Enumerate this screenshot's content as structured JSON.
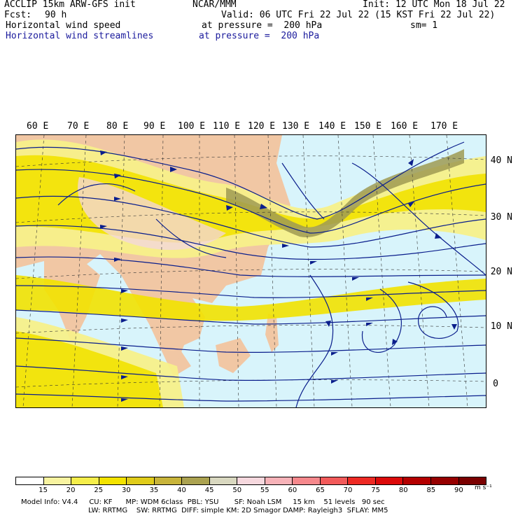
{
  "header": {
    "model": "ACCLIP 15km ARW-GFS init",
    "org": "NCAR/MMM",
    "init": "Init: 12 UTC Mon 18 Jul 22",
    "fcst_label": "Fcst:",
    "fcst_value": "90 h",
    "valid": "Valid: 06 UTC Fri 22 Jul 22 (15 KST Fri 22 Jul 22)",
    "field1": "Horizontal wind speed",
    "field1_level": "at pressure =  200 hPa",
    "smoothing": "sm= 1",
    "field2": "Horizontal wind streamlines",
    "field2_level": "at pressure =  200 hPa"
  },
  "map": {
    "lon_labels": [
      "60 E",
      "70 E",
      "80 E",
      "90 E",
      "100 E",
      "110 E",
      "120 E",
      "130 E",
      "140 E",
      "150 E",
      "160 E",
      "170 E"
    ],
    "lat_labels": [
      "40 N",
      "30 N",
      "20 N",
      "10 N",
      "0"
    ],
    "colors": {
      "ocean": "#d8f4fb",
      "land": "#f1c7a4",
      "yellow_light": "#f7f08a",
      "yellow": "#f2e200",
      "olive": "#9f9a52",
      "pink": "#f3d5e0",
      "streamline": "#0a1e8c"
    }
  },
  "colorbar": {
    "labels": [
      "15",
      "20",
      "25",
      "30",
      "35",
      "40",
      "45",
      "50",
      "55",
      "60",
      "65",
      "70",
      "75",
      "80",
      "85",
      "90"
    ],
    "unit": "m s⁻¹",
    "colors": [
      "#ffffff",
      "#f8f3a0",
      "#f5ee4a",
      "#f3e300",
      "#e0cc1a",
      "#c8b43a",
      "#aba250",
      "#d9d8c0",
      "#f6d8de",
      "#f7b2b8",
      "#f6888c",
      "#f25a5a",
      "#ee2a24",
      "#dc0a0a",
      "#b40000",
      "#960000",
      "#7a0000"
    ]
  },
  "footer": {
    "line1": "Model Info: V4.4     CU: KF      MP: WDM 6class  PBL: YSU       SF: Noah LSM     15 km    51 levels   90 sec",
    "line2": "LW: RRTMG    SW: RRTMG  DIFF: simple KM: 2D Smagor DAMP: Rayleigh3  SFLAY: MM5"
  }
}
